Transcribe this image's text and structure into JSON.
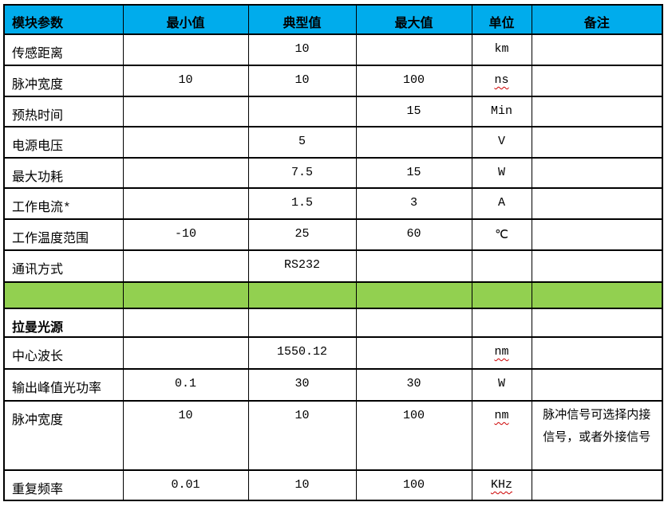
{
  "page": {
    "background": "#ffffff"
  },
  "table": {
    "border_color": "#000000",
    "header": {
      "bg": "#00ACEC",
      "text_color": "#000000",
      "columns": [
        "模块参数",
        "最小值",
        "典型值",
        "最大值",
        "单位",
        "备注"
      ]
    },
    "separator_bg": "#92D050",
    "squiggle_color": "#CC0000",
    "rows": [
      {
        "label": "传感距离",
        "min": "",
        "typical": "10",
        "max": "",
        "unit": "km",
        "note": ""
      },
      {
        "label": "脉冲宽度",
        "min": "10",
        "typical": "10",
        "max": "100",
        "unit": "ns",
        "unit_misspell": true,
        "note": ""
      },
      {
        "label": "预热时间",
        "min": "",
        "typical": "",
        "max": "15",
        "unit": "Min",
        "note": ""
      },
      {
        "label": "电源电压",
        "min": "",
        "typical": "5",
        "max": "",
        "unit": "V",
        "note": ""
      },
      {
        "label": "最大功耗",
        "min": "",
        "typical": "7.5",
        "max": "15",
        "unit": "W",
        "note": ""
      },
      {
        "label": "工作电流*",
        "min": "",
        "typical": "1.5",
        "max": "3",
        "unit": "A",
        "note": ""
      },
      {
        "label": "工作温度范围",
        "min": "-10",
        "typical": "25",
        "max": "60",
        "unit": "℃",
        "note": ""
      },
      {
        "label": "通讯方式",
        "min": "",
        "typical": "RS232",
        "max": "",
        "unit": "",
        "note": ""
      },
      {
        "type": "separator"
      },
      {
        "label": "拉曼光源",
        "section": true,
        "min": "",
        "typical": "",
        "max": "",
        "unit": "",
        "note": ""
      },
      {
        "label": "中心波长",
        "min": "",
        "typical": "1550.12",
        "max": "",
        "unit": "nm",
        "unit_misspell": true,
        "note": ""
      },
      {
        "label": "输出峰值光功率",
        "min": "0.1",
        "typical": "30",
        "max": "30",
        "unit": "W",
        "note": ""
      },
      {
        "label": "脉冲宽度",
        "min": "10",
        "typical": "10",
        "max": "100",
        "unit": "nm",
        "unit_misspell": true,
        "note": "脉冲信号可选择内接信号，或者外接信号"
      },
      {
        "label": "重复频率",
        "min": "0.01",
        "typical": "10",
        "max": "100",
        "unit": "KHz",
        "unit_misspell": true,
        "note": ""
      }
    ]
  }
}
